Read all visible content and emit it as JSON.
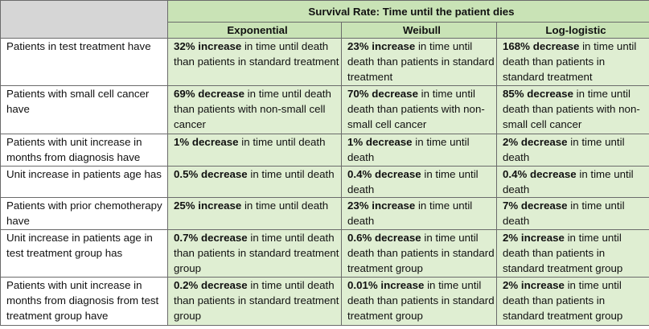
{
  "table": {
    "super_header": "Survival Rate: Time until the patient dies",
    "columns": [
      "Exponential",
      "Weibull",
      "Log-logistic"
    ],
    "rows": [
      {
        "label": "Patients in test treatment have",
        "cells": [
          {
            "value": "32% increase",
            "text": " in time until death than patients in standard treatment"
          },
          {
            "value": "23% increase",
            "text": " in time until death than patients in standard treatment"
          },
          {
            "value": "168% decrease",
            "text": " in time until death than patients in standard treatment"
          }
        ]
      },
      {
        "label": "Patients with small cell cancer have",
        "cells": [
          {
            "value": "69% decrease",
            "text": " in time until death than patients with non-small cell cancer"
          },
          {
            "value": "70% decrease",
            "text": " in time until death than patients with non-small cell cancer"
          },
          {
            "value": "85% decrease",
            "text": " in time until death than patients with non-small cell cancer"
          }
        ]
      },
      {
        "label": "Patients with unit increase in months from diagnosis have",
        "cells": [
          {
            "value": "1% decrease",
            "text": " in time until death"
          },
          {
            "value": "1% decrease",
            "text": " in time until death"
          },
          {
            "value": "2% decrease",
            "text": " in time until death"
          }
        ]
      },
      {
        "label": "Unit increase in patients age has",
        "cells": [
          {
            "value": "0.5% decrease",
            "text": " in time until death"
          },
          {
            "value": "0.4% decrease",
            "text": " in time until death"
          },
          {
            "value": "0.4% decrease",
            "text": " in time until death"
          }
        ]
      },
      {
        "label": "Patients with prior chemotherapy have",
        "cells": [
          {
            "value": "25% increase",
            "text": " in time until death"
          },
          {
            "value": "23% increase",
            "text": " in time until death"
          },
          {
            "value": "7% decrease",
            "text": " in time until death"
          }
        ]
      },
      {
        "label": "Unit increase in patients age in test treatment group has",
        "cells": [
          {
            "value": "0.7% decrease",
            "text": " in time until death than patients in standard treatment group"
          },
          {
            "value": "0.6% decrease",
            "text": " in  time until death than patients in standard treatment group"
          },
          {
            "value": "2% increase",
            "text": " in time until death than patients in standard treatment group"
          }
        ]
      },
      {
        "label": "Patients with unit increase in months from diagnosis from test treatment group have",
        "cells": [
          {
            "value": "0.2% decrease",
            "text": " in time until death than patients in standard treatment group"
          },
          {
            "value": "0.01% increase",
            "text": " in time until death than patients in standard treatment group"
          },
          {
            "value": "2% increase",
            "text": " in time until death than patients in standard treatment group"
          }
        ]
      }
    ]
  }
}
